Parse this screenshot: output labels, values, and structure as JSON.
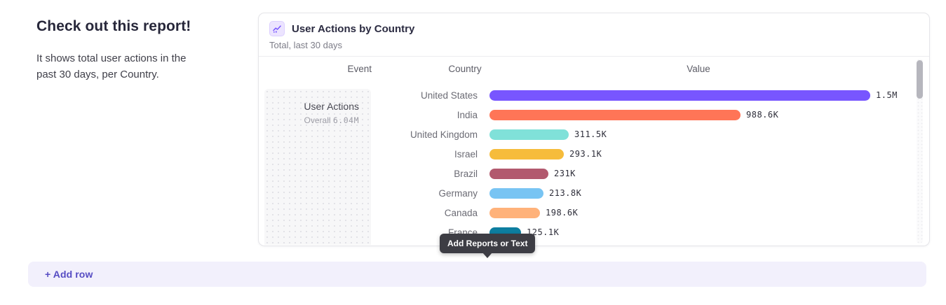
{
  "intro": {
    "title": "Check out this report!",
    "description": "It shows total user actions in the past 30 days, per Country."
  },
  "report_card": {
    "icon": "line-chart-icon",
    "title": "User Actions by Country",
    "subtitle": "Total, last 30 days",
    "columns": {
      "event": "Event",
      "country": "Country",
      "value": "Value"
    },
    "event_cell": {
      "name": "User Actions",
      "aggregation": "Overall",
      "total": "6.04M"
    }
  },
  "chart_data": {
    "type": "bar",
    "orientation": "horizontal",
    "title": "User Actions by Country",
    "subtitle": "Total, last 30 days",
    "series_name": "User Actions",
    "series_total": "6.04M",
    "categories": [
      "United States",
      "India",
      "United Kingdom",
      "Israel",
      "Brazil",
      "Germany",
      "Canada",
      "France"
    ],
    "values": [
      1500000,
      988600,
      311500,
      293100,
      231000,
      213800,
      198600,
      125100
    ],
    "value_labels": [
      "1.5M",
      "988.6K",
      "311.5K",
      "293.1K",
      "231K",
      "213.8K",
      "198.6K",
      "125.1K"
    ],
    "bar_colors": [
      "#7856ff",
      "#ff7557",
      "#80e1d9",
      "#f6bc3b",
      "#b2596e",
      "#78c4f3",
      "#ffb27a",
      "#0d7ea0"
    ],
    "xlim": [
      0,
      1500000
    ],
    "grid": false,
    "legend": "none"
  },
  "tooltip": {
    "label": "Add Reports or Text"
  },
  "add_row": {
    "label": "+ Add row"
  },
  "colors": {
    "accent": "#7856ff",
    "tooltip_bg": "#3d3d44",
    "add_row_bg": "#f2f0fc",
    "add_row_text": "#564cc3"
  }
}
